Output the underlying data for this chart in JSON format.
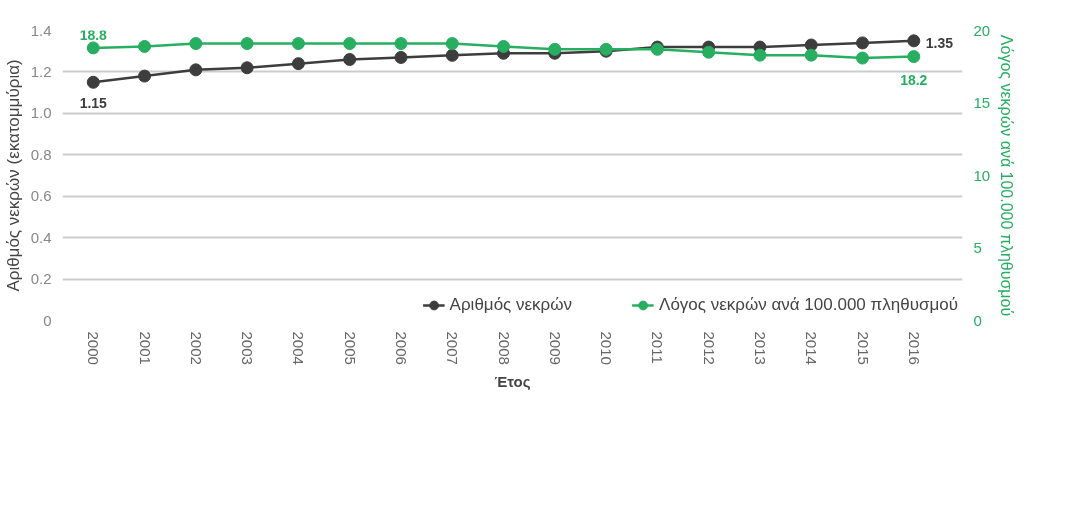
{
  "chart_data": {
    "type": "line",
    "xlabel": "Έτος",
    "ylabel": "Αριθμός νεκρών (εκατομμύρια)",
    "y2label": "Λόγος νεκρών ανά 100.000 πληθυσμού",
    "categories": [
      "2000",
      "2001",
      "2002",
      "2003",
      "2004",
      "2005",
      "2006",
      "2007",
      "2008",
      "2009",
      "2010",
      "2011",
      "2012",
      "2013",
      "2014",
      "2015",
      "2016"
    ],
    "series": [
      {
        "name": "Αριθμός νεκρών",
        "color": "#3d3d3d",
        "values": [
          1.15,
          1.18,
          1.21,
          1.22,
          1.24,
          1.26,
          1.27,
          1.28,
          1.29,
          1.29,
          1.3,
          1.32,
          1.32,
          1.32,
          1.33,
          1.34,
          1.35
        ],
        "value_labels": [
          "1.15",
          null,
          null,
          null,
          null,
          null,
          null,
          null,
          null,
          null,
          null,
          null,
          null,
          null,
          null,
          null,
          "1.35"
        ]
      },
      {
        "name": "Λόγος νεκρών ανά 100.000 πληθυσμού",
        "color": "#27ae60",
        "axis": "y2",
        "values": [
          18.8,
          18.9,
          19.1,
          19.1,
          19.1,
          19.1,
          19.1,
          19.1,
          18.9,
          18.7,
          18.7,
          18.7,
          18.5,
          18.3,
          18.3,
          18.1,
          18.2
        ],
        "value_labels": [
          "18.8",
          null,
          null,
          null,
          null,
          null,
          null,
          null,
          null,
          null,
          null,
          null,
          null,
          null,
          null,
          null,
          "18.2"
        ]
      }
    ],
    "ylim": [
      0,
      1.4
    ],
    "yticks": [
      0,
      0.2,
      0.4,
      0.6,
      0.8,
      {
        "value": 1,
        "label": "1.0"
      },
      1.2,
      1.4
    ],
    "y2lim": [
      0,
      20
    ],
    "y2ticks": [
      0,
      5,
      10,
      15,
      20
    ],
    "grid": "y",
    "legend": "bottom",
    "marker": "circle",
    "line_style": "solid"
  }
}
